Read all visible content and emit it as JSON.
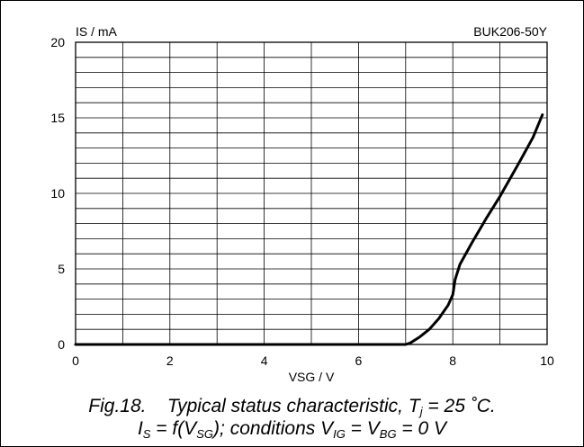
{
  "chart_data": {
    "type": "line",
    "xlabel": "VSG / V",
    "ylabel": "IS / mA",
    "device": "BUK206-50Y",
    "xlim": [
      0,
      10
    ],
    "ylim": [
      0,
      20
    ],
    "x_ticks": [
      "0",
      "2",
      "4",
      "6",
      "8",
      "10"
    ],
    "y_ticks": [
      "0",
      "5",
      "10",
      "15",
      "20"
    ],
    "minor_grid": {
      "x_step": 1,
      "y_step": 1
    },
    "grid": true,
    "series": [
      {
        "values": [
          [
            0,
            0
          ],
          [
            7.0,
            0
          ],
          [
            7.1,
            0.1
          ],
          [
            7.3,
            0.5
          ],
          [
            7.5,
            1.0
          ],
          [
            7.7,
            1.7
          ],
          [
            7.9,
            2.6
          ],
          [
            8.0,
            3.3
          ],
          [
            8.05,
            4.3
          ],
          [
            8.15,
            5.3
          ],
          [
            8.4,
            6.7
          ],
          [
            8.7,
            8.3
          ],
          [
            9.0,
            9.8
          ],
          [
            9.4,
            12.0
          ],
          [
            9.7,
            13.7
          ],
          [
            9.9,
            15.2
          ]
        ]
      }
    ]
  },
  "caption": {
    "line1": {
      "fig": "Fig.18.",
      "text": "Typical status characteristic, T",
      "sub": "j",
      "tail": " = 25 ˚C."
    },
    "line2": {
      "p1": "I",
      "s1": "S",
      "p2": " = f(V",
      "s2": "SG",
      "p3": "); conditions V",
      "s3": "IG",
      "p4": " = V",
      "s4": "BG",
      "p5": " = 0 V"
    }
  }
}
